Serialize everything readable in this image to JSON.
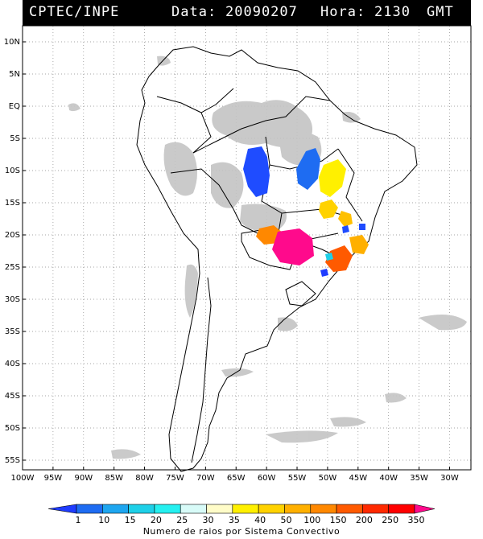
{
  "header": {
    "agency": "CPTEC/INPE",
    "date_label": "Data:",
    "date_value": "20090207",
    "hour_label": "Hora:",
    "hour_value": "2130",
    "hour_unit": "GMT"
  },
  "map": {
    "lat_labels": [
      "10N",
      "5N",
      "EQ",
      "5S",
      "10S",
      "15S",
      "20S",
      "25S",
      "30S",
      "35S",
      "40S",
      "45S",
      "50S",
      "55S"
    ],
    "lon_labels": [
      "100W",
      "95W",
      "90W",
      "85W",
      "80W",
      "75W",
      "70W",
      "65W",
      "60W",
      "55W",
      "50W",
      "45W",
      "40W",
      "35W",
      "30W"
    ],
    "lat_range": [
      -56,
      12
    ],
    "lon_range": [
      -100,
      -27
    ],
    "grid": "dotted",
    "cloud_color": "#bdbdbd",
    "storm_cells": [
      {
        "name": "blue-cell-west",
        "lon": -61,
        "lat": -11.5,
        "value": 10
      },
      {
        "name": "blue-cell-center",
        "lon": -51,
        "lat": -11.0,
        "value": 10
      },
      {
        "name": "yellow-cell-bahia",
        "lon": -48.5,
        "lat": -12.5,
        "value": 40
      },
      {
        "name": "gold-cell-goias",
        "lon": -49.5,
        "lat": -15.5,
        "value": 50
      },
      {
        "name": "gold-cell-minas",
        "lon": -46.5,
        "lat": -17.0,
        "value": 50
      },
      {
        "name": "orange-cell-pantanal",
        "lon": -58.0,
        "lat": -20.0,
        "value": 150
      },
      {
        "name": "magenta-cell-paraguay",
        "lon": -55.0,
        "lat": -22.0,
        "value": 350
      },
      {
        "name": "orange-cell-saopaulo",
        "lon": -47.5,
        "lat": -24.0,
        "value": 200
      },
      {
        "name": "orange-cell-rio",
        "lon": -44.5,
        "lat": -21.5,
        "value": 100
      },
      {
        "name": "cyan-cell-parana",
        "lon": -50.5,
        "lat": -23.5,
        "value": 25
      }
    ]
  },
  "legend": {
    "caption": "Numero de raios por Sistema Convectivo",
    "labels": [
      "1",
      "10",
      "15",
      "20",
      "25",
      "30",
      "35",
      "40",
      "50",
      "100",
      "150",
      "200",
      "250",
      "350"
    ],
    "colors": [
      "#1f3cff",
      "#1e6cf2",
      "#1ea6f0",
      "#1ed0e8",
      "#25f0f0",
      "#d8fbf8",
      "#fffcc8",
      "#fff000",
      "#ffd200",
      "#ffb000",
      "#ff8800",
      "#ff5a00",
      "#ff2a00",
      "#ff0000",
      "#ff0a8c"
    ]
  }
}
